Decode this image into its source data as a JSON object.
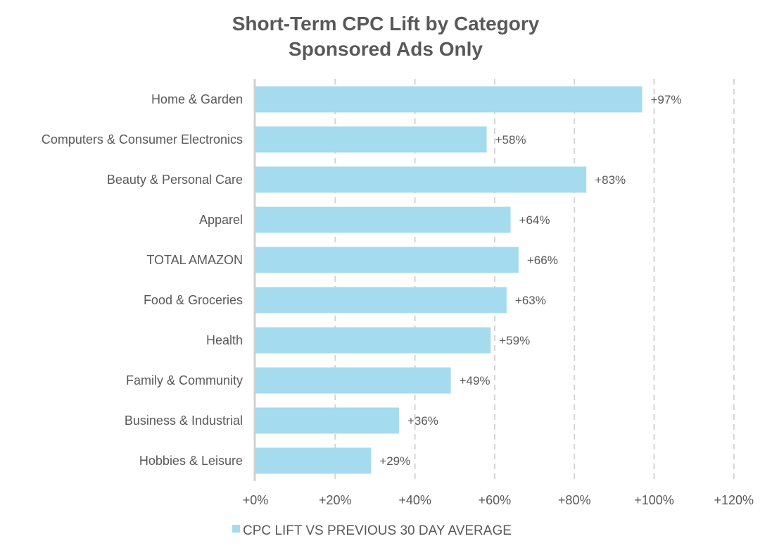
{
  "chart_data": {
    "type": "bar",
    "orientation": "horizontal",
    "title": "Short-Term CPC Lift by Category",
    "subtitle": "Sponsored Ads Only",
    "xlabel": "",
    "ylabel": "",
    "categories": [
      "Home & Garden",
      "Computers & Consumer Electronics",
      "Beauty & Personal Care",
      "Apparel",
      "TOTAL AMAZON",
      "Food & Groceries",
      "Health",
      "Family & Community",
      "Business & Industrial",
      "Hobbies & Leisure"
    ],
    "series": [
      {
        "name": "CPC LIFT VS PREVIOUS 30 DAY AVERAGE",
        "values": [
          97,
          58,
          83,
          64,
          66,
          63,
          59,
          49,
          36,
          29
        ],
        "data_labels": [
          "+97%",
          "+58%",
          "+83%",
          "+64%",
          "+66%",
          "+63%",
          "+59%",
          "+49%",
          "+36%",
          "+29%"
        ],
        "color": "#a5dbee"
      }
    ],
    "xlim": [
      0,
      120
    ],
    "x_ticks": [
      0,
      20,
      40,
      60,
      80,
      100,
      120
    ],
    "x_tick_labels": [
      "+0%",
      "+20%",
      "+40%",
      "+60%",
      "+80%",
      "+100%",
      "+120%"
    ],
    "grid": "vertical dashed",
    "legend_position": "bottom"
  },
  "colors": {
    "bar": "#a5dbee",
    "text": "#595959",
    "grid": "#d4d4d4",
    "axis": "#d0d0d0"
  }
}
